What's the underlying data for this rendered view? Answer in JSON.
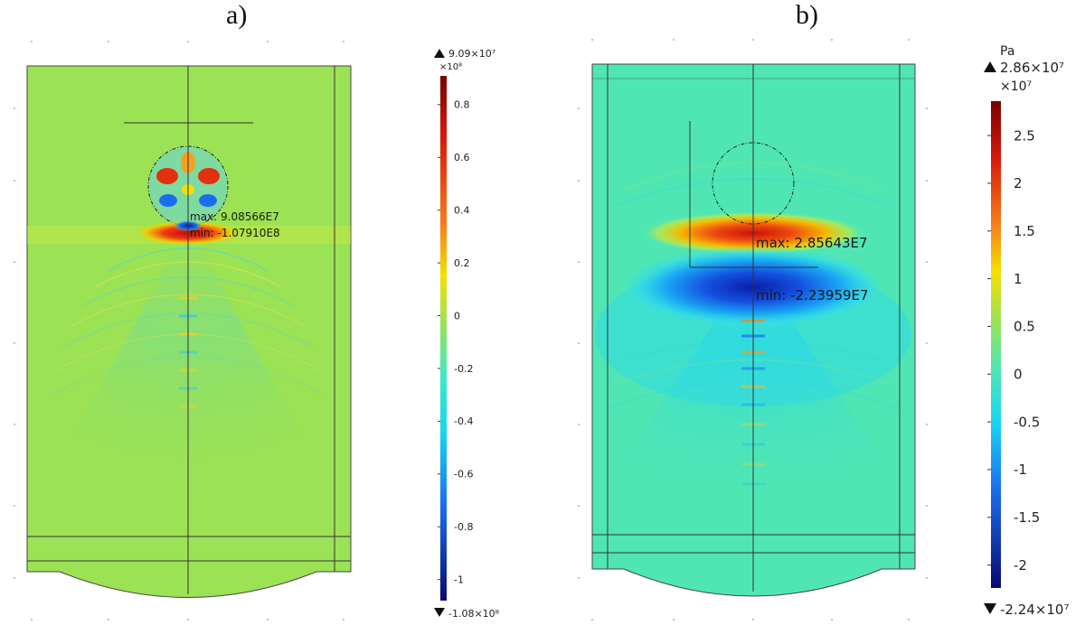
{
  "panels": {
    "a": {
      "label": "a)"
    },
    "b": {
      "label": "b)"
    }
  },
  "chart_data": [
    {
      "type": "heatmap",
      "panel": "a)",
      "colormap": "rainbow",
      "colorbar": {
        "unit": "",
        "multiplier": "×10⁸",
        "max_label": "9.09×10⁷",
        "min_label": "-1.08×10⁸",
        "max": 0.909,
        "min": -1.08,
        "ticks": [
          0.8,
          0.6,
          0.4,
          0.2,
          0,
          -0.2,
          -0.4,
          -0.6,
          -0.8,
          -1
        ],
        "tick_labels": [
          "0.8",
          "0.6",
          "0.4",
          "0.2",
          "0",
          "-0.2",
          "-0.4",
          "-0.6",
          "-0.8",
          "-1"
        ]
      },
      "annotations": [
        "max: 9.08566E7",
        "min: -1.07910E8"
      ],
      "background_color": "#9be255"
    },
    {
      "type": "heatmap",
      "panel": "b)",
      "colormap": "rainbow",
      "colorbar": {
        "unit": "Pa",
        "multiplier": "×10⁷",
        "max_label": "2.86×10⁷",
        "min_label": "-2.24×10⁷",
        "max": 2.86,
        "min": -2.24,
        "ticks": [
          2.5,
          2,
          1.5,
          1,
          0.5,
          0,
          -0.5,
          -1,
          -1.5,
          -2
        ],
        "tick_labels": [
          "2.5",
          "2",
          "1.5",
          "1",
          "0.5",
          "0",
          "-0.5",
          "-1",
          "-1.5",
          "-2"
        ]
      },
      "annotations": [
        "max: 2.85643E7",
        "min: -2.23959E7"
      ],
      "background_color": "#4fe6b4"
    }
  ]
}
